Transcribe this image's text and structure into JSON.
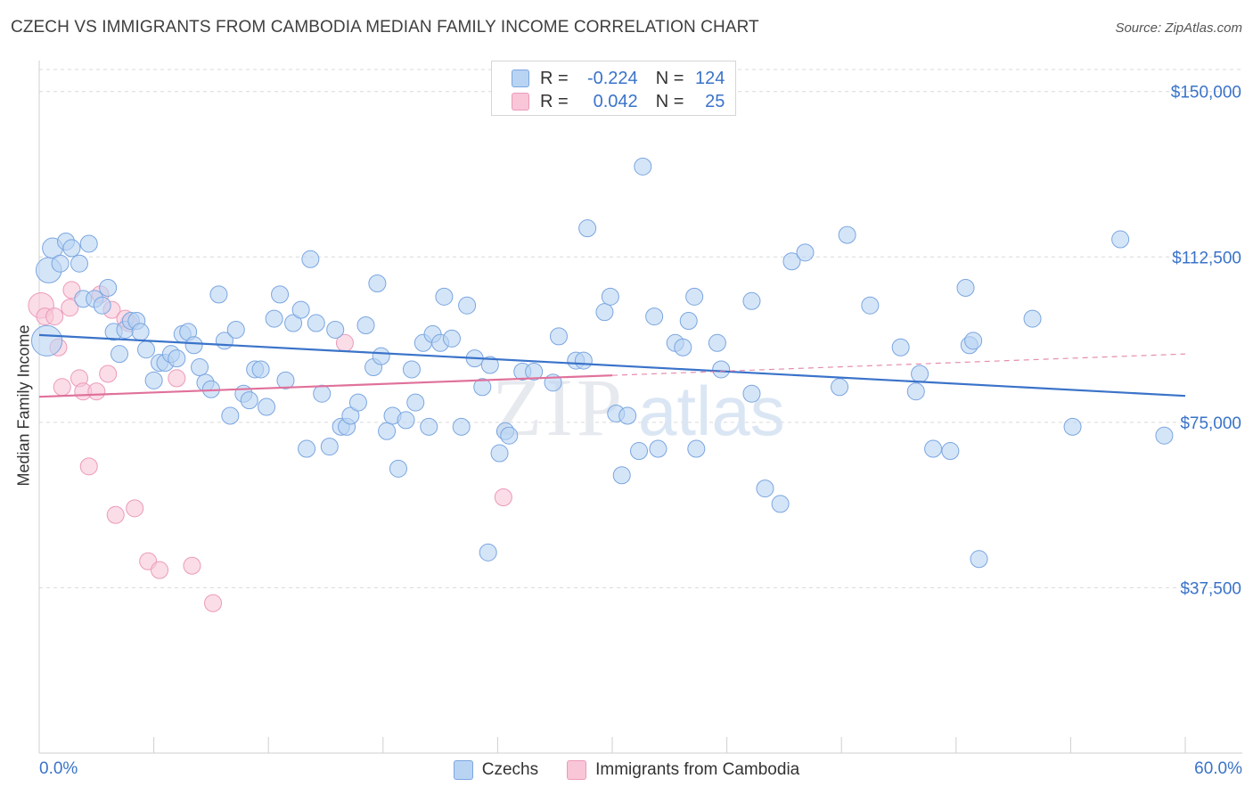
{
  "title": "CZECH VS IMMIGRANTS FROM CAMBODIA MEDIAN FAMILY INCOME CORRELATION CHART",
  "source": "Source: ZipAtlas.com",
  "watermark": {
    "zip": "ZIP",
    "atlas": "atlas"
  },
  "colors": {
    "blue": "#3a73c9",
    "blue_fill": "#b9d3f3",
    "blue_stroke": "#7aa6e0",
    "pink": "#e0719b",
    "pink_fill": "#f8c6d7",
    "pink_stroke": "#ec9ab9",
    "grid": "#d9d9d9",
    "axis_text": "#3a73c9"
  },
  "legend_top": {
    "rows": [
      {
        "r_label": "R =",
        "r": "-0.224",
        "n_label": "N =",
        "n": "124"
      },
      {
        "r_label": "R =",
        "r": "0.042",
        "n_label": "N =",
        "n": "25"
      }
    ]
  },
  "legend_bottom": {
    "czechs": "Czechs",
    "cambodia": "Immigrants from Cambodia"
  },
  "chart_data": {
    "type": "scatter",
    "title": "CZECH VS IMMIGRANTS FROM CAMBODIA MEDIAN FAMILY INCOME CORRELATION CHART",
    "xlabel": "",
    "ylabel": "Median Family Income",
    "xlim": [
      0,
      60
    ],
    "ylim": [
      0,
      155000
    ],
    "x_tick_labels": [
      "0.0%",
      "60.0%"
    ],
    "y_ticks": [
      {
        "value": 37500,
        "label": "$37,500"
      },
      {
        "value": 75000,
        "label": "$75,000"
      },
      {
        "value": 112500,
        "label": "$112,500"
      },
      {
        "value": 150000,
        "label": "$150,000"
      }
    ],
    "grid": true,
    "series": [
      {
        "name": "Czechs",
        "color": "#3a73c9",
        "r": -0.224,
        "n": 124,
        "trend": {
          "x0": 0,
          "y0": 94800,
          "x1": 60,
          "y1": 81000,
          "solid_to": 60
        },
        "points": [
          [
            0.4,
            93500,
            1.8
          ],
          [
            0.5,
            109500,
            1.5
          ],
          [
            0.7,
            114500,
            1.2
          ],
          [
            1.1,
            111000,
            1
          ],
          [
            1.4,
            116000,
            1
          ],
          [
            1.7,
            114500,
            1
          ],
          [
            2.1,
            111000,
            1
          ],
          [
            2.3,
            103000,
            1
          ],
          [
            2.6,
            115500,
            1
          ],
          [
            2.9,
            103000,
            1
          ],
          [
            3.3,
            101500,
            1
          ],
          [
            3.6,
            105500,
            1
          ],
          [
            3.9,
            95500,
            1
          ],
          [
            4.2,
            90500,
            1
          ],
          [
            4.5,
            96000,
            1
          ],
          [
            4.8,
            98000,
            1
          ],
          [
            5.1,
            98000,
            1
          ],
          [
            5.3,
            95500,
            1
          ],
          [
            5.6,
            91500,
            1
          ],
          [
            6.0,
            84500,
            1
          ],
          [
            6.3,
            88500,
            1
          ],
          [
            6.6,
            88500,
            1
          ],
          [
            6.9,
            90500,
            1
          ],
          [
            7.2,
            89500,
            1
          ],
          [
            7.5,
            95000,
            1
          ],
          [
            7.8,
            95500,
            1
          ],
          [
            8.1,
            92500,
            1
          ],
          [
            8.4,
            87500,
            1
          ],
          [
            8.7,
            84000,
            1
          ],
          [
            9.0,
            82500,
            1
          ],
          [
            9.4,
            104000,
            1
          ],
          [
            9.7,
            93500,
            1
          ],
          [
            10.0,
            76500,
            1
          ],
          [
            10.3,
            96000,
            1
          ],
          [
            10.7,
            81500,
            1
          ],
          [
            11.0,
            80000,
            1
          ],
          [
            11.3,
            87000,
            1
          ],
          [
            11.6,
            87000,
            1
          ],
          [
            11.9,
            78500,
            1
          ],
          [
            12.3,
            98500,
            1
          ],
          [
            12.6,
            104000,
            1
          ],
          [
            12.9,
            84500,
            1
          ],
          [
            13.3,
            97500,
            1
          ],
          [
            13.7,
            100500,
            1
          ],
          [
            14.0,
            69000,
            1
          ],
          [
            14.2,
            112000,
            1
          ],
          [
            14.5,
            97500,
            1
          ],
          [
            14.8,
            81500,
            1
          ],
          [
            15.2,
            69500,
            1
          ],
          [
            15.5,
            96000,
            1
          ],
          [
            15.8,
            74000,
            1
          ],
          [
            16.1,
            74000,
            1
          ],
          [
            16.3,
            76500,
            1
          ],
          [
            16.7,
            79500,
            1
          ],
          [
            17.1,
            97000,
            1
          ],
          [
            17.5,
            87500,
            1
          ],
          [
            17.7,
            106500,
            1
          ],
          [
            17.9,
            90000,
            1
          ],
          [
            18.2,
            73000,
            1
          ],
          [
            18.5,
            76500,
            1
          ],
          [
            18.8,
            64500,
            1
          ],
          [
            19.2,
            75500,
            1
          ],
          [
            19.5,
            87000,
            1
          ],
          [
            19.7,
            79500,
            1
          ],
          [
            20.1,
            93000,
            1
          ],
          [
            20.4,
            74000,
            1
          ],
          [
            20.6,
            95000,
            1
          ],
          [
            21.0,
            93000,
            1
          ],
          [
            21.2,
            103500,
            1
          ],
          [
            21.6,
            94000,
            1
          ],
          [
            22.1,
            74000,
            1
          ],
          [
            22.4,
            101500,
            1
          ],
          [
            22.8,
            89500,
            1
          ],
          [
            23.2,
            83000,
            1
          ],
          [
            23.5,
            45500,
            1
          ],
          [
            23.6,
            88000,
            1
          ],
          [
            24.1,
            68000,
            1
          ],
          [
            24.4,
            73000,
            1
          ],
          [
            24.6,
            72000,
            1
          ],
          [
            25.3,
            86500,
            1
          ],
          [
            25.9,
            86500,
            1
          ],
          [
            26.9,
            84000,
            1
          ],
          [
            27.2,
            94500,
            1
          ],
          [
            28.1,
            89000,
            1
          ],
          [
            28.5,
            89000,
            1
          ],
          [
            28.7,
            119000,
            1
          ],
          [
            29.6,
            100000,
            1
          ],
          [
            29.9,
            103500,
            1
          ],
          [
            30.2,
            77000,
            1
          ],
          [
            30.5,
            63000,
            1
          ],
          [
            30.8,
            76500,
            1
          ],
          [
            31.4,
            68500,
            1
          ],
          [
            31.6,
            133000,
            1
          ],
          [
            32.2,
            99000,
            1
          ],
          [
            32.4,
            69000,
            1
          ],
          [
            33.3,
            93000,
            1
          ],
          [
            33.7,
            92000,
            1
          ],
          [
            34.0,
            98000,
            1
          ],
          [
            34.4,
            69000,
            1
          ],
          [
            34.3,
            103500,
            1
          ],
          [
            35.5,
            93000,
            1
          ],
          [
            35.7,
            87000,
            1
          ],
          [
            37.3,
            81500,
            1
          ],
          [
            37.3,
            102500,
            1
          ],
          [
            38.0,
            60000,
            1
          ],
          [
            38.8,
            56500,
            1
          ],
          [
            39.4,
            111500,
            1
          ],
          [
            40.1,
            113500,
            1
          ],
          [
            41.9,
            83000,
            1
          ],
          [
            42.3,
            117500,
            1
          ],
          [
            43.5,
            101500,
            1
          ],
          [
            45.1,
            92000,
            1
          ],
          [
            45.9,
            82000,
            1
          ],
          [
            46.1,
            86000,
            1
          ],
          [
            46.8,
            69000,
            1
          ],
          [
            47.7,
            68500,
            1
          ],
          [
            48.5,
            105500,
            1
          ],
          [
            48.7,
            92500,
            1
          ],
          [
            48.9,
            93500,
            1
          ],
          [
            49.2,
            44000,
            1
          ],
          [
            52.0,
            98500,
            1
          ],
          [
            54.1,
            74000,
            1
          ],
          [
            56.6,
            116500,
            1
          ],
          [
            58.9,
            72000,
            1
          ]
        ]
      },
      {
        "name": "Immigrants from Cambodia",
        "color": "#e0719b",
        "r": 0.042,
        "n": 25,
        "trend": {
          "x0": 0,
          "y0": 80800,
          "x1": 60,
          "y1": 90500,
          "solid_to": 30
        },
        "points": [
          [
            0.1,
            101500,
            1.5
          ],
          [
            0.3,
            99000,
            1
          ],
          [
            0.8,
            99000,
            1
          ],
          [
            1.0,
            92000,
            1
          ],
          [
            1.2,
            83000,
            1
          ],
          [
            1.6,
            101000,
            1
          ],
          [
            2.1,
            85000,
            1
          ],
          [
            2.3,
            82000,
            1
          ],
          [
            2.6,
            65000,
            1
          ],
          [
            3.0,
            82000,
            1
          ],
          [
            3.2,
            104000,
            1
          ],
          [
            3.6,
            86000,
            1
          ],
          [
            3.8,
            100500,
            1
          ],
          [
            4.0,
            54000,
            1
          ],
          [
            4.7,
            97500,
            1
          ],
          [
            5.0,
            55500,
            1
          ],
          [
            5.7,
            43500,
            1
          ],
          [
            6.3,
            41500,
            1
          ],
          [
            7.2,
            85000,
            1
          ],
          [
            8.0,
            42500,
            1
          ],
          [
            9.1,
            34000,
            1
          ],
          [
            16.0,
            93000,
            1
          ],
          [
            24.3,
            58000,
            1
          ],
          [
            1.7,
            105000,
            1
          ],
          [
            4.5,
            98500,
            1
          ]
        ]
      }
    ]
  }
}
